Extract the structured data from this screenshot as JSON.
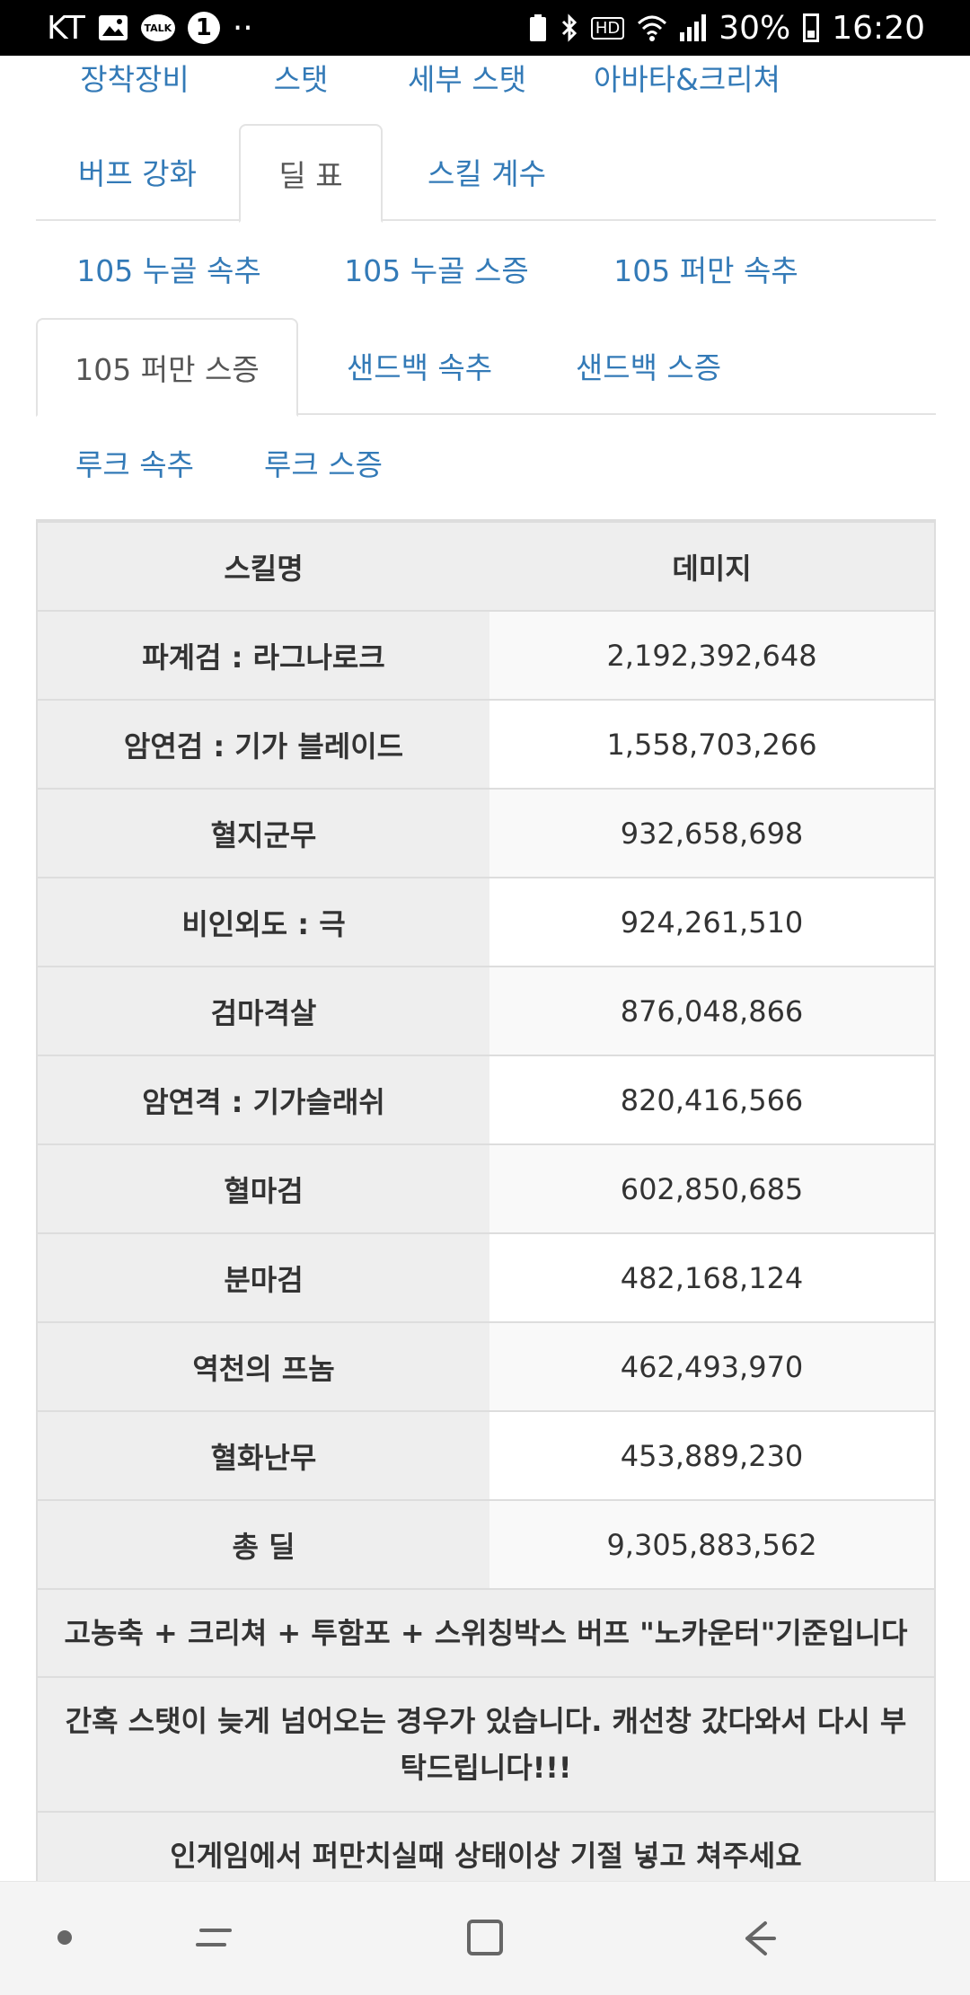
{
  "status_bar": {
    "carrier": "KT",
    "dots": "··",
    "notification_badge": "1",
    "talk_label": "TALK",
    "hd_label": "HD",
    "battery": "30%",
    "time": "16:20"
  },
  "tabs_primary": {
    "row1": [
      {
        "label": "장착장비"
      },
      {
        "label": "스탯"
      },
      {
        "label": "세부 스탯"
      },
      {
        "label": "아바타&크리쳐"
      }
    ],
    "row2": [
      {
        "label": "버프 강화"
      },
      {
        "label": "딜 표"
      },
      {
        "label": "스킬 계수"
      }
    ],
    "active": "딜 표"
  },
  "tabs_secondary": {
    "row1": [
      {
        "label": "105 누골 속추"
      },
      {
        "label": "105 누골 스증"
      },
      {
        "label": "105 퍼만 속추"
      }
    ],
    "row2": [
      {
        "label": "105 퍼만 스증"
      },
      {
        "label": "샌드백 속추"
      },
      {
        "label": "샌드백 스증"
      }
    ],
    "row3": [
      {
        "label": "루크 속추"
      },
      {
        "label": "루크 스증"
      }
    ],
    "active": "105 퍼만 스증"
  },
  "table": {
    "headers": [
      "스킬명",
      "데미지"
    ],
    "rows": [
      {
        "skill": "파계검 : 라그나로크",
        "damage": "2,192,392,648"
      },
      {
        "skill": "암연검 : 기가 블레이드",
        "damage": "1,558,703,266"
      },
      {
        "skill": "혈지군무",
        "damage": "932,658,698"
      },
      {
        "skill": "비인외도 : 극",
        "damage": "924,261,510"
      },
      {
        "skill": "검마격살",
        "damage": "876,048,866"
      },
      {
        "skill": "암연격 : 기가슬래쉬",
        "damage": "820,416,566"
      },
      {
        "skill": "혈마검",
        "damage": "602,850,685"
      },
      {
        "skill": "분마검",
        "damage": "482,168,124"
      },
      {
        "skill": "역천의 프놈",
        "damage": "462,493,970"
      },
      {
        "skill": "혈화난무",
        "damage": "453,889,230"
      },
      {
        "skill": "총 딜",
        "damage": "9,305,883,562"
      }
    ],
    "notes": [
      "고농축 + 크리쳐 + 투함포 + 스위칭박스 버프 \"노카운터\"기준입니다",
      "간혹 스탯이 늦게 넘어오는 경우가 있습니다. 캐선창 갔다와서 다시 부탁드립니다!!!",
      "인게임에서 퍼만치실때 상태이상 기절 넣고 쳐주세요"
    ]
  }
}
